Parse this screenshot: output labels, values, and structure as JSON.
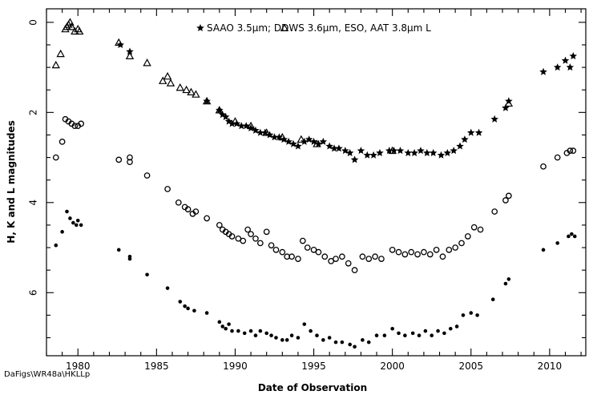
{
  "chart_data": {
    "type": "scatter",
    "xlabel": "Date of Observation",
    "ylabel": "H, K and L magnitudes",
    "xlim": [
      1978.0,
      2012.3
    ],
    "ylim": [
      7.4,
      -0.3
    ],
    "y_inverted": true,
    "x_ticks_major": [
      1980,
      1985,
      1990,
      1995,
      2000,
      2005,
      2010
    ],
    "x_tick_labels": [
      "1980",
      "1985",
      "1990",
      "1995",
      "2000",
      "2005",
      "2010"
    ],
    "y_ticks_major": [
      0,
      2,
      4,
      6
    ],
    "y_tick_labels": [
      "0",
      "2",
      "4",
      "6"
    ],
    "legend": {
      "placement": "top",
      "text": "SAAO 3.5μm; DDWS 3.6μm, ESO, AAT 3.8μm L"
    },
    "footer": "DaFigs\\WR48a\\HKLLp",
    "series": [
      {
        "name": "SAAO 3.5μm",
        "marker": "star",
        "points": [
          [
            1982.7,
            0.5
          ],
          [
            1983.3,
            0.65
          ],
          [
            1988.2,
            1.75
          ],
          [
            1989.0,
            1.95
          ],
          [
            1989.2,
            2.05
          ],
          [
            1989.4,
            2.1
          ],
          [
            1989.6,
            2.2
          ],
          [
            1989.8,
            2.25
          ],
          [
            1990.1,
            2.25
          ],
          [
            1990.4,
            2.3
          ],
          [
            1990.7,
            2.3
          ],
          [
            1991.0,
            2.35
          ],
          [
            1991.3,
            2.4
          ],
          [
            1991.6,
            2.45
          ],
          [
            1991.9,
            2.45
          ],
          [
            1992.2,
            2.5
          ],
          [
            1992.5,
            2.55
          ],
          [
            1992.8,
            2.55
          ],
          [
            1993.1,
            2.6
          ],
          [
            1993.4,
            2.65
          ],
          [
            1993.7,
            2.7
          ],
          [
            1994.0,
            2.75
          ],
          [
            1994.4,
            2.65
          ],
          [
            1994.7,
            2.6
          ],
          [
            1995.0,
            2.65
          ],
          [
            1995.3,
            2.7
          ],
          [
            1995.6,
            2.65
          ],
          [
            1996.0,
            2.75
          ],
          [
            1996.3,
            2.8
          ],
          [
            1996.6,
            2.8
          ],
          [
            1997.0,
            2.85
          ],
          [
            1997.3,
            2.9
          ],
          [
            1997.6,
            3.05
          ],
          [
            1998.0,
            2.85
          ],
          [
            1998.4,
            2.95
          ],
          [
            1998.8,
            2.95
          ],
          [
            1999.2,
            2.9
          ],
          [
            1999.8,
            2.85
          ],
          [
            2000.1,
            2.85
          ],
          [
            2000.5,
            2.85
          ],
          [
            2001.0,
            2.9
          ],
          [
            2001.4,
            2.9
          ],
          [
            2001.8,
            2.85
          ],
          [
            2002.2,
            2.9
          ],
          [
            2002.6,
            2.9
          ],
          [
            2003.1,
            2.95
          ],
          [
            2003.5,
            2.9
          ],
          [
            2003.9,
            2.85
          ],
          [
            2004.3,
            2.75
          ],
          [
            2004.6,
            2.6
          ],
          [
            2005.0,
            2.45
          ],
          [
            2005.5,
            2.45
          ],
          [
            2006.5,
            2.15
          ],
          [
            2007.2,
            1.9
          ],
          [
            2007.4,
            1.75
          ],
          [
            2009.6,
            1.1
          ],
          [
            2010.5,
            1.0
          ],
          [
            2011.0,
            0.85
          ],
          [
            2011.3,
            1.0
          ],
          [
            2011.5,
            0.75
          ]
        ]
      },
      {
        "name": "DDWS 3.6μm, ESO, AAT 3.8μm L",
        "marker": "triangle",
        "points": [
          [
            1978.6,
            0.95
          ],
          [
            1978.9,
            0.7
          ],
          [
            1979.2,
            0.15
          ],
          [
            1979.3,
            0.1
          ],
          [
            1979.4,
            0.05
          ],
          [
            1979.5,
            0.0
          ],
          [
            1979.6,
            0.1
          ],
          [
            1979.8,
            0.2
          ],
          [
            1980.0,
            0.15
          ],
          [
            1980.1,
            0.2
          ],
          [
            1982.6,
            0.45
          ],
          [
            1983.3,
            0.75
          ],
          [
            1984.4,
            0.9
          ],
          [
            1985.4,
            1.3
          ],
          [
            1985.7,
            1.2
          ],
          [
            1985.9,
            1.35
          ],
          [
            1986.5,
            1.45
          ],
          [
            1986.9,
            1.5
          ],
          [
            1987.2,
            1.55
          ],
          [
            1987.5,
            1.6
          ],
          [
            1988.2,
            1.75
          ],
          [
            1989.0,
            1.95
          ],
          [
            1990.0,
            2.2
          ],
          [
            1991.0,
            2.3
          ],
          [
            1992.0,
            2.45
          ],
          [
            1993.0,
            2.55
          ],
          [
            1994.2,
            2.6
          ],
          [
            1995.2,
            2.7
          ],
          [
            2000.0,
            2.85
          ],
          [
            2007.4,
            1.8
          ]
        ]
      },
      {
        "name": "K",
        "marker": "circle-open",
        "points": [
          [
            1978.6,
            3.0
          ],
          [
            1979.0,
            2.65
          ],
          [
            1979.2,
            2.15
          ],
          [
            1979.4,
            2.2
          ],
          [
            1979.6,
            2.25
          ],
          [
            1979.8,
            2.3
          ],
          [
            1980.0,
            2.3
          ],
          [
            1980.2,
            2.25
          ],
          [
            1982.6,
            3.05
          ],
          [
            1983.3,
            3.0
          ],
          [
            1983.3,
            3.1
          ],
          [
            1984.4,
            3.4
          ],
          [
            1985.7,
            3.7
          ],
          [
            1986.4,
            4.0
          ],
          [
            1986.8,
            4.1
          ],
          [
            1987.0,
            4.15
          ],
          [
            1987.3,
            4.25
          ],
          [
            1987.5,
            4.2
          ],
          [
            1988.2,
            4.35
          ],
          [
            1989.0,
            4.5
          ],
          [
            1989.2,
            4.6
          ],
          [
            1989.4,
            4.65
          ],
          [
            1989.6,
            4.7
          ],
          [
            1989.8,
            4.75
          ],
          [
            1990.2,
            4.8
          ],
          [
            1990.5,
            4.85
          ],
          [
            1990.8,
            4.6
          ],
          [
            1991.0,
            4.7
          ],
          [
            1991.3,
            4.8
          ],
          [
            1991.6,
            4.9
          ],
          [
            1992.0,
            4.65
          ],
          [
            1992.3,
            4.95
          ],
          [
            1992.6,
            5.05
          ],
          [
            1993.0,
            5.1
          ],
          [
            1993.3,
            5.2
          ],
          [
            1993.6,
            5.2
          ],
          [
            1994.0,
            5.25
          ],
          [
            1994.3,
            4.85
          ],
          [
            1994.6,
            5.0
          ],
          [
            1995.0,
            5.05
          ],
          [
            1995.3,
            5.1
          ],
          [
            1995.7,
            5.2
          ],
          [
            1996.1,
            5.3
          ],
          [
            1996.4,
            5.25
          ],
          [
            1996.8,
            5.2
          ],
          [
            1997.2,
            5.35
          ],
          [
            1997.6,
            5.5
          ],
          [
            1998.1,
            5.2
          ],
          [
            1998.5,
            5.25
          ],
          [
            1998.9,
            5.2
          ],
          [
            1999.3,
            5.25
          ],
          [
            2000.0,
            5.05
          ],
          [
            2000.4,
            5.1
          ],
          [
            2000.8,
            5.15
          ],
          [
            2001.2,
            5.1
          ],
          [
            2001.6,
            5.15
          ],
          [
            2002.0,
            5.1
          ],
          [
            2002.4,
            5.15
          ],
          [
            2002.8,
            5.05
          ],
          [
            2003.2,
            5.2
          ],
          [
            2003.6,
            5.05
          ],
          [
            2004.0,
            5.0
          ],
          [
            2004.4,
            4.9
          ],
          [
            2004.8,
            4.75
          ],
          [
            2005.2,
            4.55
          ],
          [
            2005.6,
            4.6
          ],
          [
            2006.5,
            4.2
          ],
          [
            2007.2,
            3.95
          ],
          [
            2007.4,
            3.85
          ],
          [
            2009.6,
            3.2
          ],
          [
            2010.5,
            3.0
          ],
          [
            2011.1,
            2.9
          ],
          [
            2011.3,
            2.85
          ],
          [
            2011.5,
            2.85
          ]
        ]
      },
      {
        "name": "H",
        "marker": "circle-filled",
        "points": [
          [
            1978.6,
            4.95
          ],
          [
            1979.0,
            4.65
          ],
          [
            1979.3,
            4.2
          ],
          [
            1979.5,
            4.35
          ],
          [
            1979.7,
            4.45
          ],
          [
            1979.9,
            4.5
          ],
          [
            1980.0,
            4.4
          ],
          [
            1980.2,
            4.5
          ],
          [
            1982.6,
            5.05
          ],
          [
            1983.3,
            5.2
          ],
          [
            1983.3,
            5.25
          ],
          [
            1984.4,
            5.6
          ],
          [
            1985.7,
            5.9
          ],
          [
            1986.5,
            6.2
          ],
          [
            1986.8,
            6.3
          ],
          [
            1987.0,
            6.35
          ],
          [
            1987.4,
            6.4
          ],
          [
            1988.2,
            6.45
          ],
          [
            1989.0,
            6.65
          ],
          [
            1989.2,
            6.75
          ],
          [
            1989.4,
            6.8
          ],
          [
            1989.6,
            6.7
          ],
          [
            1989.8,
            6.85
          ],
          [
            1990.2,
            6.85
          ],
          [
            1990.6,
            6.9
          ],
          [
            1991.0,
            6.85
          ],
          [
            1991.3,
            6.95
          ],
          [
            1991.6,
            6.85
          ],
          [
            1992.0,
            6.9
          ],
          [
            1992.3,
            6.95
          ],
          [
            1992.6,
            7.0
          ],
          [
            1993.0,
            7.05
          ],
          [
            1993.3,
            7.05
          ],
          [
            1993.6,
            6.95
          ],
          [
            1994.0,
            7.0
          ],
          [
            1994.4,
            6.7
          ],
          [
            1994.8,
            6.85
          ],
          [
            1995.2,
            6.95
          ],
          [
            1995.6,
            7.05
          ],
          [
            1996.0,
            7.0
          ],
          [
            1996.4,
            7.1
          ],
          [
            1996.8,
            7.1
          ],
          [
            1997.3,
            7.15
          ],
          [
            1997.6,
            7.2
          ],
          [
            1998.1,
            7.05
          ],
          [
            1998.5,
            7.1
          ],
          [
            1999.0,
            6.95
          ],
          [
            1999.5,
            6.95
          ],
          [
            2000.0,
            6.8
          ],
          [
            2000.4,
            6.9
          ],
          [
            2000.8,
            6.95
          ],
          [
            2001.3,
            6.9
          ],
          [
            2001.7,
            6.95
          ],
          [
            2002.1,
            6.85
          ],
          [
            2002.5,
            6.95
          ],
          [
            2002.9,
            6.85
          ],
          [
            2003.3,
            6.9
          ],
          [
            2003.7,
            6.8
          ],
          [
            2004.1,
            6.75
          ],
          [
            2004.5,
            6.5
          ],
          [
            2005.0,
            6.45
          ],
          [
            2005.4,
            6.5
          ],
          [
            2006.4,
            6.15
          ],
          [
            2007.2,
            5.8
          ],
          [
            2007.4,
            5.7
          ],
          [
            2009.6,
            5.05
          ],
          [
            2010.5,
            4.9
          ],
          [
            2011.2,
            4.75
          ],
          [
            2011.4,
            4.7
          ],
          [
            2011.6,
            4.75
          ]
        ]
      }
    ]
  }
}
